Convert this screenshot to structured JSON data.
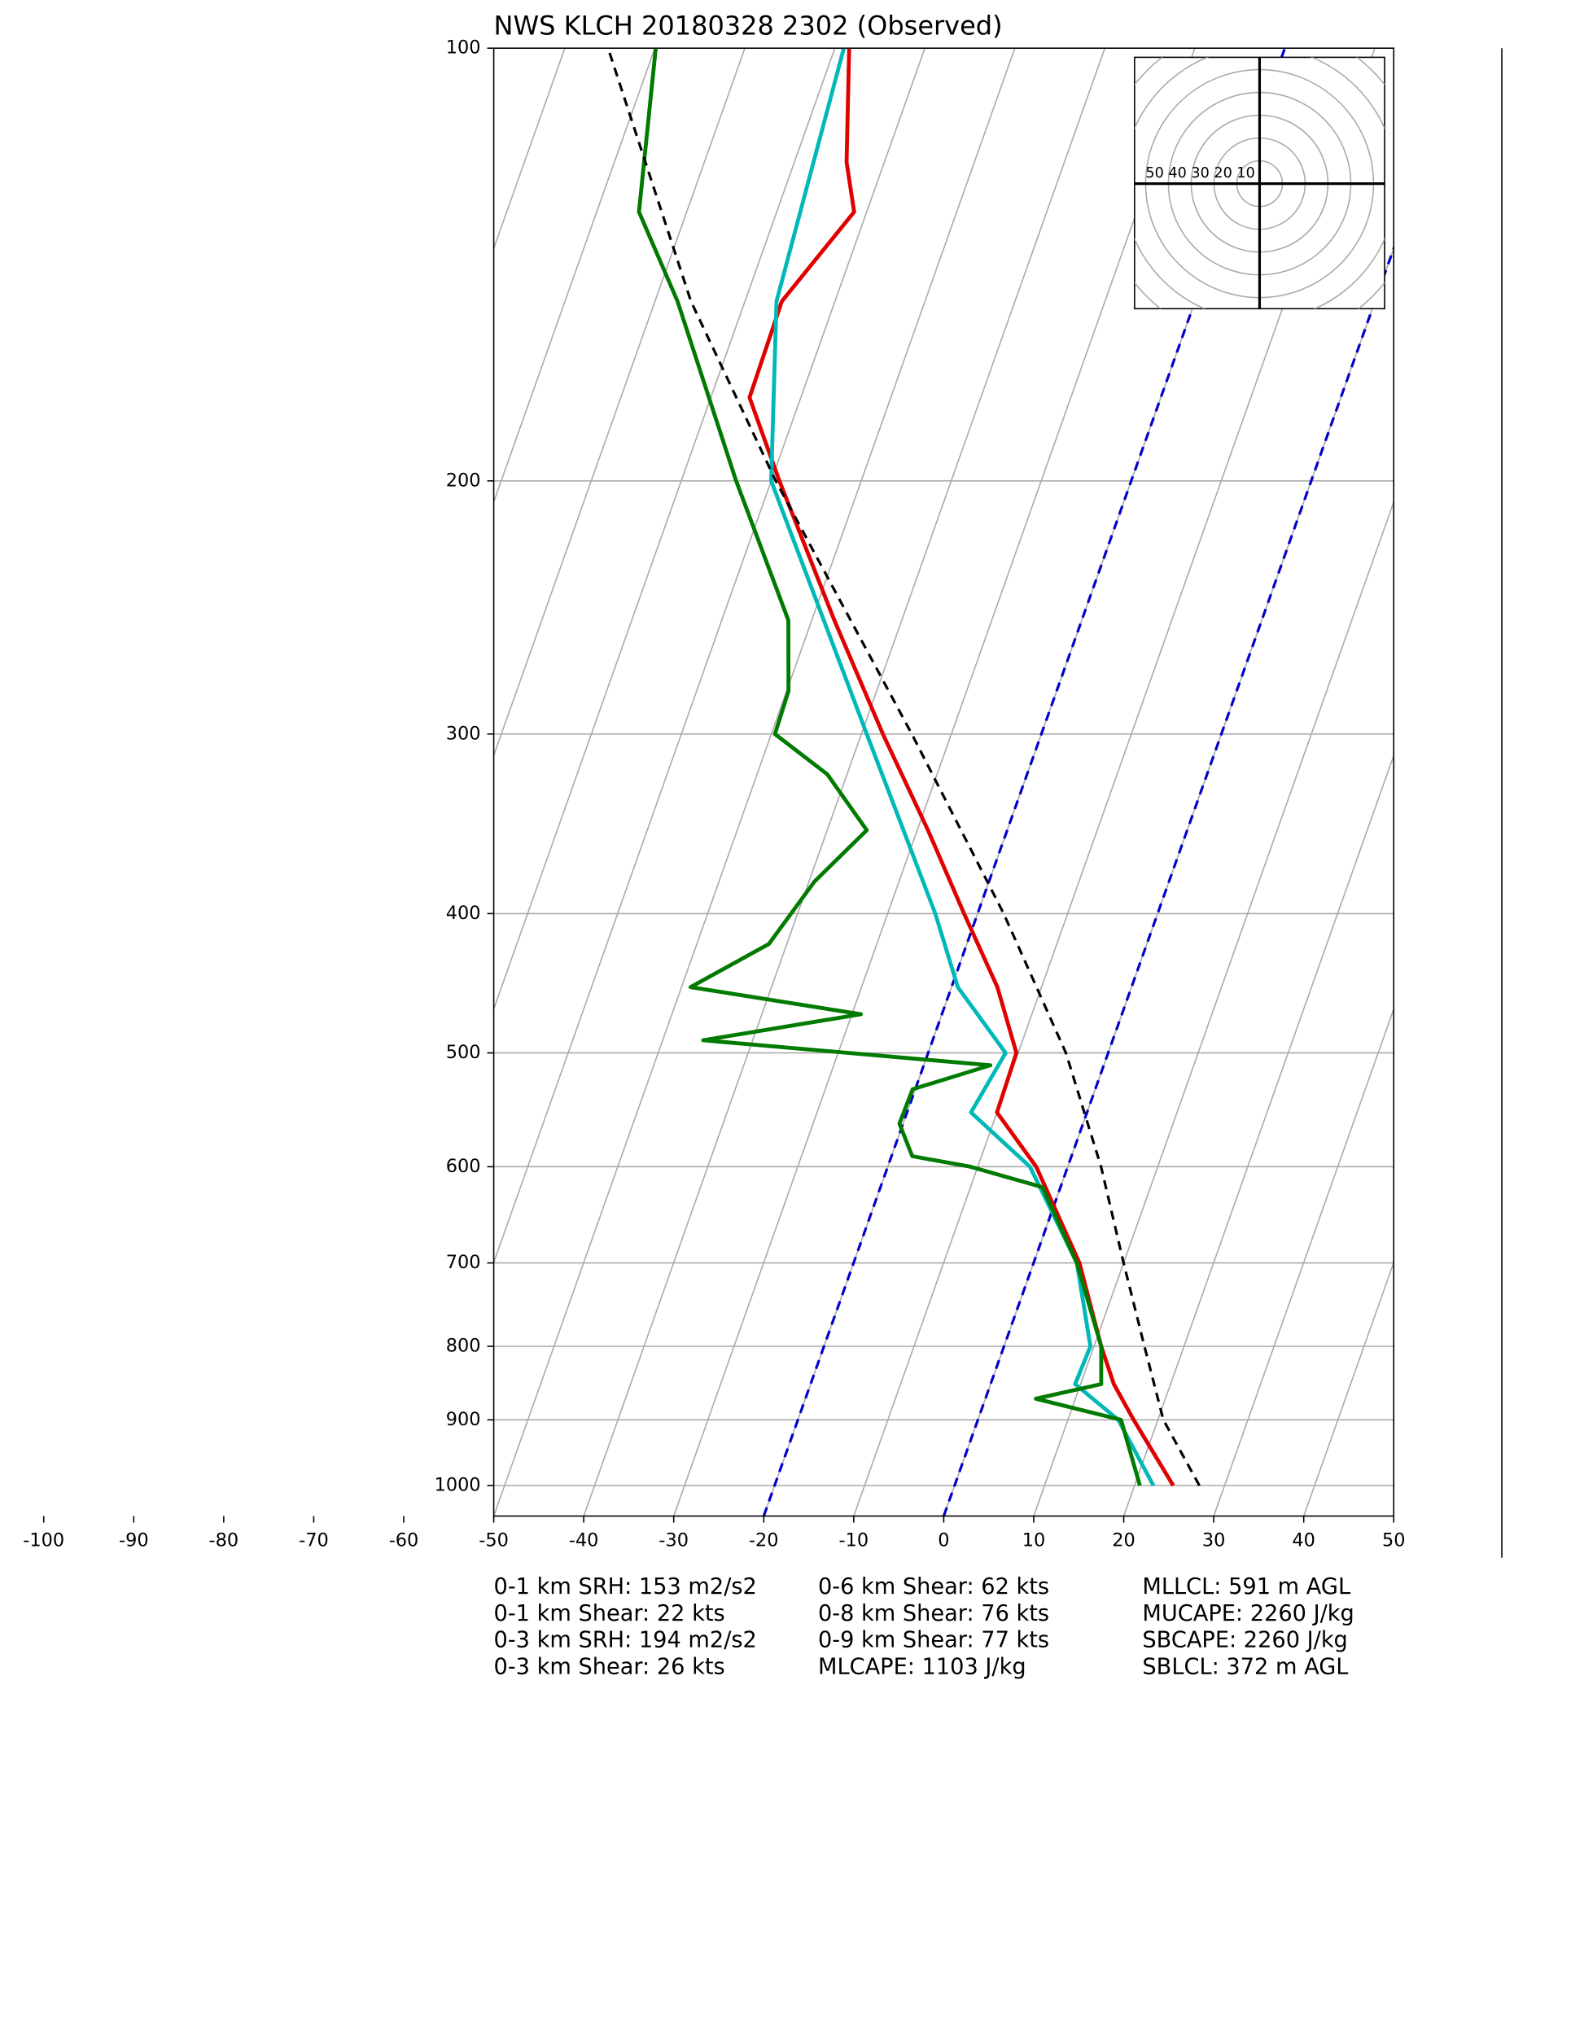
{
  "chart_data": {
    "type": "skewt",
    "title": "NWS KLCH 20180328 2302   (Observed)",
    "xlim": [
      -50,
      50
    ],
    "ylim": [
      1050,
      100
    ],
    "xticks": [
      -100,
      -90,
      -80,
      -70,
      -60,
      -50,
      -40,
      -30,
      -20,
      -10,
      0,
      10,
      20,
      30,
      40,
      50
    ],
    "yticks": [
      100,
      200,
      300,
      400,
      500,
      600,
      700,
      800,
      900,
      1000
    ],
    "log_scale": true,
    "grid": true,
    "highlight_isotherms": [
      -20,
      0
    ],
    "series": [
      {
        "color": "#e00000",
        "pressure": [
          1000,
          900,
          850,
          800,
          700,
          600,
          550,
          500,
          450,
          400,
          350,
          300,
          250,
          200,
          175,
          150,
          130,
          120,
          100
        ],
        "values": [
          24.3,
          17.3,
          13.7,
          10.8,
          5.1,
          -3.5,
          -10,
          -10.2,
          -14.9,
          -21.5,
          -28.8,
          -37.6,
          -47.5,
          -59.1,
          -65.7,
          -65.9,
          -61.4,
          -64.2,
          -68.4
        ]
      },
      {
        "color": "#00b8b8",
        "pressure": [
          1000,
          900,
          850,
          800,
          700,
          600,
          550,
          500,
          450,
          400,
          300,
          200,
          150,
          100
        ],
        "values": [
          22.1,
          15.6,
          9.4,
          9.6,
          4.8,
          -4.2,
          -12.9,
          -11.4,
          -19.3,
          -24.7,
          -39.4,
          -60,
          -66.5,
          -69
        ]
      },
      {
        "color": "#007a00",
        "pressure": [
          1000,
          900,
          870,
          850,
          800,
          700,
          620,
          600,
          590,
          560,
          530,
          510,
          490,
          470,
          450,
          420,
          380,
          350,
          320,
          300,
          280,
          250,
          200,
          150,
          130,
          100
        ],
        "values": [
          20.6,
          15.9,
          5.6,
          12.3,
          10.8,
          4.8,
          -2,
          -10.8,
          -17.7,
          -20.4,
          -20.3,
          -12.6,
          -45.5,
          -29,
          -49,
          -42,
          -39.4,
          -35.6,
          -42.2,
          -49.6,
          -49.8,
          -52.6,
          -63.9,
          -77.5,
          -85.3,
          -89.9
        ]
      },
      {
        "color": "#000000",
        "dash": true,
        "pressure": [
          1000,
          900,
          800,
          700,
          600,
          500,
          400,
          300,
          200,
          150,
          100
        ],
        "values": [
          27.2,
          20.6,
          15.6,
          10,
          3.7,
          -4.7,
          -17.1,
          -34.4,
          -59.5,
          -76,
          -95.2
        ]
      }
    ],
    "hodograph": {
      "ring_labels": [
        50,
        40,
        30,
        20,
        10
      ]
    },
    "stats": [
      [
        "0-1 km SRH: 153 m2/s2",
        "0-1 km Shear: 22 kts",
        "0-3 km SRH: 194 m2/s2",
        "0-3 km Shear: 26 kts"
      ],
      [
        "0-6 km Shear: 62 kts",
        "0-8 km Shear: 76 kts",
        "0-9 km Shear: 77 kts",
        "MLCAPE: 1103 J/kg"
      ],
      [
        "MLLCL: 591 m AGL",
        "MUCAPE: 2260 J/kg",
        "SBCAPE: 2260 J/kg",
        "SBLCL: 372 m AGL"
      ]
    ]
  }
}
